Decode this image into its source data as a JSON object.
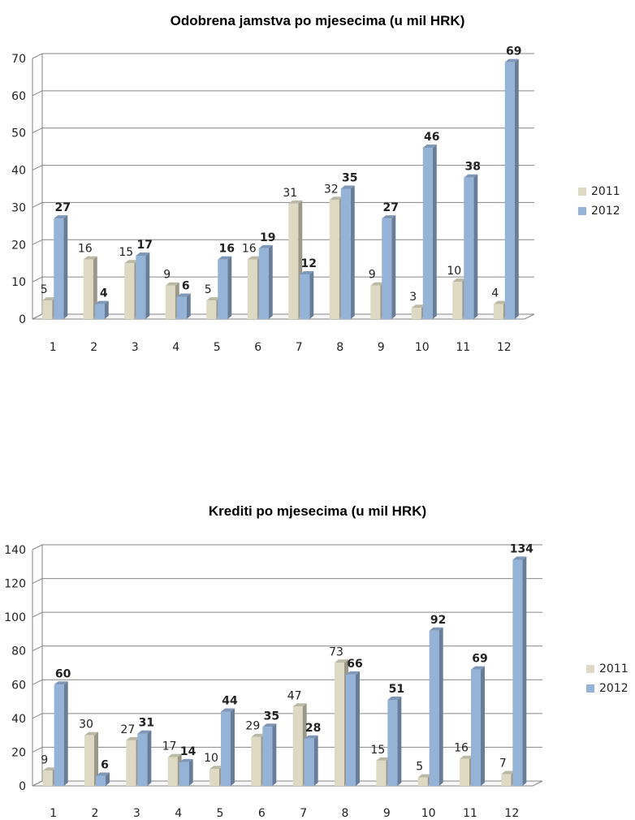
{
  "colors": {
    "series2011": "#ddd9c3",
    "series2012": "#95b3d7"
  },
  "chart_data": [
    {
      "type": "bar",
      "title": "Odobrena jamstva po mjesecima (u mil HRK)",
      "xlabel": "",
      "ylabel": "",
      "categories": [
        "1",
        "2",
        "3",
        "4",
        "5",
        "6",
        "7",
        "8",
        "9",
        "10",
        "11",
        "12"
      ],
      "ylim": [
        0,
        70
      ],
      "yticks": [
        "0",
        "10",
        "20",
        "30",
        "40",
        "50",
        "60",
        "70"
      ],
      "grid": true,
      "legend_position": "right",
      "series": [
        {
          "name": "2011",
          "values": [
            5,
            16,
            15,
            9,
            5,
            16,
            31,
            32,
            9,
            3,
            10,
            4
          ]
        },
        {
          "name": "2012",
          "values": [
            27,
            4,
            17,
            6,
            16,
            19,
            12,
            35,
            27,
            46,
            38,
            69
          ]
        }
      ]
    },
    {
      "type": "bar",
      "title": "Krediti po mjesecima (u mil HRK)",
      "xlabel": "",
      "ylabel": "",
      "categories": [
        "1",
        "2",
        "3",
        "4",
        "5",
        "6",
        "7",
        "8",
        "9",
        "10",
        "11",
        "12"
      ],
      "ylim": [
        0,
        140
      ],
      "yticks": [
        "0",
        "20",
        "40",
        "60",
        "80",
        "100",
        "120",
        "140"
      ],
      "grid": true,
      "legend_position": "right",
      "series": [
        {
          "name": "2011",
          "values": [
            9,
            30,
            27,
            17,
            10,
            29,
            47,
            73,
            15,
            5,
            16,
            7
          ]
        },
        {
          "name": "2012",
          "values": [
            60,
            6,
            31,
            14,
            44,
            35,
            28,
            66,
            51,
            92,
            69,
            134
          ]
        }
      ]
    }
  ]
}
